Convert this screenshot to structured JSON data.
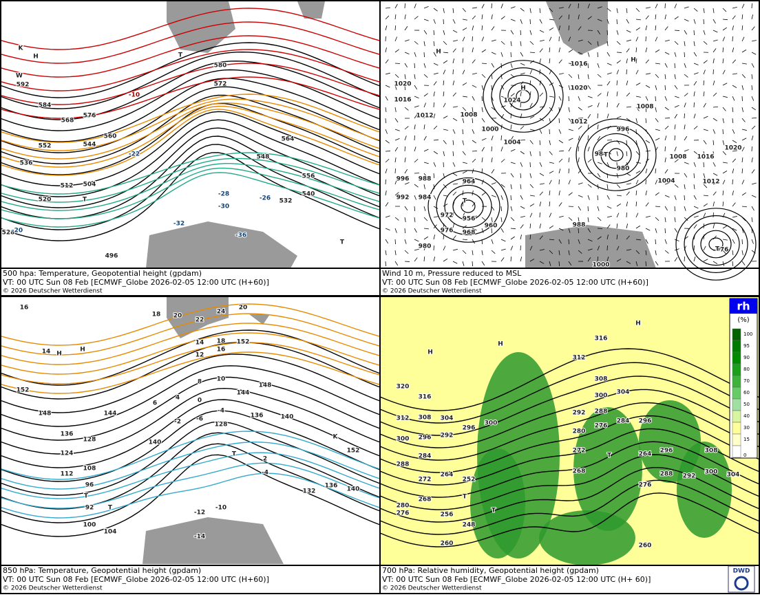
{
  "panels": [
    {
      "caption": {
        "title": "500 hpa: Temperature, Geopotential height (gpdam)",
        "vt": "VT: 00 UTC Sun  08 Feb [ECMWF_Globe 2026-02-05 12:00 UTC  (H+60)]",
        "copyright": "© 2026 Deutscher Wetterdienst"
      },
      "labels": [
        "592",
        "584",
        "576",
        "568",
        "560",
        "552",
        "544",
        "536",
        "528",
        "520",
        "512",
        "504",
        "496",
        "580",
        "572",
        "564",
        "556",
        "548",
        "540",
        "532",
        "-10",
        "-20",
        "-22",
        "-26",
        "-28",
        "-30",
        "-32",
        "-36",
        "T",
        "T",
        "T",
        "H",
        "K",
        "W"
      ]
    },
    {
      "caption": {
        "title": "Wind 10 m, Pressure reduced to MSL",
        "vt": "VT: 00 UTC Sun  08 Feb [ECMWF_Globe 2026-02-05 12:00 UTC  (H+60)]",
        "copyright": "© 2026 Deutscher Wetterdienst"
      },
      "labels": [
        "1020",
        "1016",
        "1012",
        "1008",
        "1000",
        "1004",
        "1024",
        "1016",
        "1020",
        "1012",
        "1008",
        "996",
        "984",
        "980",
        "992",
        "996",
        "988",
        "984",
        "964",
        "972",
        "976",
        "956",
        "968",
        "960",
        "980",
        "988",
        "1000",
        "1004",
        "1008",
        "1016",
        "1012",
        "1020",
        "976",
        "H",
        "H",
        "H",
        "T",
        "T",
        "T"
      ]
    },
    {
      "caption": {
        "title": "850 hPa:  Temperature, Geopotential height (gpdam)",
        "vt": "VT: 00 UTC Sun  08 Feb [ECMWF_Globe 2026-02-05 12:00 UTC  (H+60)]",
        "copyright": "© 2026 Deutscher Wetterdienst"
      },
      "labels": [
        "16",
        "14",
        "152",
        "148",
        "144",
        "136",
        "128",
        "124",
        "112",
        "108",
        "104",
        "100",
        "96",
        "92",
        "140",
        "144",
        "148",
        "152",
        "136",
        "140",
        "128",
        "132",
        "136",
        "140",
        "152",
        "18",
        "20",
        "22",
        "24",
        "20",
        "14",
        "12",
        "16",
        "18",
        "10",
        "8",
        "6",
        "4",
        "0",
        "-2",
        "-6",
        "-4",
        "2",
        "-4",
        "-10",
        "-12",
        "-14",
        "T",
        "T",
        "T",
        "K",
        "H",
        "H"
      ]
    },
    {
      "caption": {
        "title": "700 hPa:  Relative humidity, Geopotential height (gpdam)",
        "vt": "VT: 00 UTC Sun  08 Feb [ECMWF_Globe  2026-02-05 12:00 UTC  (H+ 60)]",
        "copyright": "© 2026 Deutscher Wetterdienst"
      },
      "labels": [
        "320",
        "316",
        "312",
        "308",
        "304",
        "300",
        "296",
        "292",
        "300",
        "296",
        "288",
        "284",
        "280",
        "276",
        "272",
        "268",
        "264",
        "256",
        "252",
        "248",
        "260",
        "316",
        "312",
        "308",
        "304",
        "300",
        "296",
        "292",
        "288",
        "284",
        "280",
        "276",
        "272",
        "268",
        "264",
        "276",
        "288",
        "296",
        "292",
        "300",
        "304",
        "308",
        "260",
        "H",
        "H",
        "H",
        "T",
        "T",
        "T"
      ]
    }
  ],
  "legend": {
    "title": "rh",
    "unit": "(%)",
    "ticks": [
      "100",
      "95",
      "90",
      "80",
      "70",
      "60",
      "50",
      "40",
      "30",
      "15",
      "0"
    ]
  },
  "logo": {
    "text": "DWD"
  }
}
